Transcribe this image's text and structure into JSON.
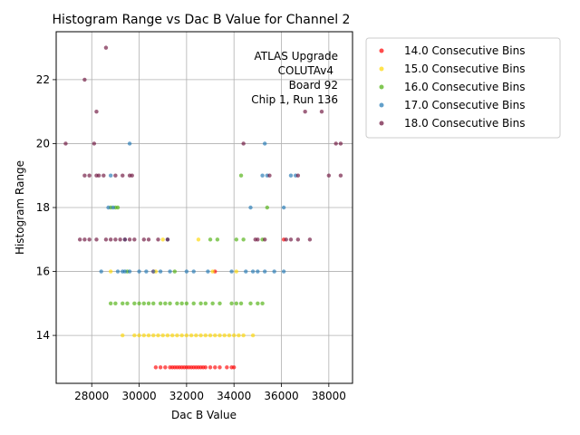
{
  "chart_data": {
    "type": "scatter",
    "title": "Histogram Range vs Dac B Value for Channel 2",
    "xlabel": "Dac B Value",
    "ylabel": "Histogram Range",
    "xlim": [
      26500,
      39000
    ],
    "ylim": [
      12.5,
      23.5
    ],
    "x_ticks": [
      28000,
      30000,
      32000,
      34000,
      36000,
      38000
    ],
    "y_ticks": [
      14,
      16,
      18,
      20,
      22
    ],
    "grid": true,
    "legend_position": "outside-right",
    "annotation": [
      "ATLAS Upgrade",
      "COLUTAv4",
      "Board 92",
      "Chip 1, Run 136"
    ],
    "series": [
      {
        "name": "14.0 Consecutive Bins",
        "color": "#ff0000",
        "points": [
          [
            30700,
            13
          ],
          [
            30900,
            13
          ],
          [
            31100,
            13
          ],
          [
            31300,
            13
          ],
          [
            31400,
            13
          ],
          [
            31500,
            13
          ],
          [
            31600,
            13
          ],
          [
            31700,
            13
          ],
          [
            31800,
            13
          ],
          [
            31900,
            13
          ],
          [
            32000,
            13
          ],
          [
            32100,
            13
          ],
          [
            32200,
            13
          ],
          [
            32300,
            13
          ],
          [
            32400,
            13
          ],
          [
            32500,
            13
          ],
          [
            32600,
            13
          ],
          [
            32700,
            13
          ],
          [
            32800,
            13
          ],
          [
            33000,
            13
          ],
          [
            33200,
            13
          ],
          [
            33400,
            13
          ],
          [
            33700,
            13
          ],
          [
            33900,
            13
          ],
          [
            34000,
            13
          ],
          [
            33200,
            16
          ],
          [
            36100,
            17
          ],
          [
            30600,
            16
          ]
        ]
      },
      {
        "name": "15.0 Consecutive Bins",
        "color": "#ffd700",
        "points": [
          [
            29300,
            14
          ],
          [
            29800,
            14
          ],
          [
            30000,
            14
          ],
          [
            30200,
            14
          ],
          [
            30400,
            14
          ],
          [
            30600,
            14
          ],
          [
            30800,
            14
          ],
          [
            31000,
            14
          ],
          [
            31200,
            14
          ],
          [
            31400,
            14
          ],
          [
            31600,
            14
          ],
          [
            31800,
            14
          ],
          [
            32000,
            14
          ],
          [
            32200,
            14
          ],
          [
            32400,
            14
          ],
          [
            32600,
            14
          ],
          [
            32800,
            14
          ],
          [
            33000,
            14
          ],
          [
            33200,
            14
          ],
          [
            33400,
            14
          ],
          [
            33600,
            14
          ],
          [
            33800,
            14
          ],
          [
            34000,
            14
          ],
          [
            34200,
            14
          ],
          [
            34400,
            14
          ],
          [
            34800,
            14
          ],
          [
            28800,
            16
          ],
          [
            30700,
            16
          ],
          [
            31000,
            17
          ],
          [
            32500,
            17
          ],
          [
            33100,
            16
          ],
          [
            34100,
            16
          ]
        ]
      },
      {
        "name": "16.0 Consecutive Bins",
        "color": "#4caf0a",
        "points": [
          [
            28800,
            15
          ],
          [
            29000,
            15
          ],
          [
            29300,
            15
          ],
          [
            29500,
            15
          ],
          [
            29800,
            15
          ],
          [
            30000,
            15
          ],
          [
            30200,
            15
          ],
          [
            30400,
            15
          ],
          [
            30600,
            15
          ],
          [
            30900,
            15
          ],
          [
            31100,
            15
          ],
          [
            31300,
            15
          ],
          [
            31600,
            15
          ],
          [
            31800,
            15
          ],
          [
            32000,
            15
          ],
          [
            32300,
            15
          ],
          [
            32600,
            15
          ],
          [
            32800,
            15
          ],
          [
            33100,
            15
          ],
          [
            33400,
            15
          ],
          [
            33900,
            15
          ],
          [
            34100,
            15
          ],
          [
            34300,
            15
          ],
          [
            34700,
            15
          ],
          [
            35000,
            15
          ],
          [
            35200,
            15
          ],
          [
            28800,
            18
          ],
          [
            29000,
            18
          ],
          [
            29100,
            18
          ],
          [
            33000,
            17
          ],
          [
            33300,
            17
          ],
          [
            34100,
            17
          ],
          [
            34400,
            17
          ],
          [
            35200,
            17
          ],
          [
            35400,
            18
          ],
          [
            34300,
            19
          ],
          [
            31500,
            16
          ],
          [
            29500,
            16
          ]
        ]
      },
      {
        "name": "17.0 Consecutive Bins",
        "color": "#1f77b4",
        "points": [
          [
            28400,
            16
          ],
          [
            29100,
            16
          ],
          [
            29300,
            16
          ],
          [
            29400,
            16
          ],
          [
            29600,
            16
          ],
          [
            30000,
            16
          ],
          [
            30300,
            16
          ],
          [
            30600,
            16
          ],
          [
            30900,
            16
          ],
          [
            31300,
            16
          ],
          [
            32000,
            16
          ],
          [
            32300,
            16
          ],
          [
            32900,
            16
          ],
          [
            33900,
            16
          ],
          [
            34500,
            16
          ],
          [
            34800,
            16
          ],
          [
            35000,
            16
          ],
          [
            35300,
            16
          ],
          [
            35700,
            16
          ],
          [
            36100,
            16
          ],
          [
            28700,
            18
          ],
          [
            28900,
            18
          ],
          [
            34700,
            18
          ],
          [
            36100,
            18
          ],
          [
            29600,
            20
          ],
          [
            35300,
            20
          ],
          [
            35200,
            19
          ],
          [
            35400,
            19
          ],
          [
            36400,
            19
          ],
          [
            36600,
            19
          ],
          [
            28800,
            19
          ],
          [
            31200,
            17
          ],
          [
            29400,
            17
          ]
        ]
      },
      {
        "name": "18.0 Consecutive Bins",
        "color": "#6b0f3a",
        "points": [
          [
            26900,
            20
          ],
          [
            27700,
            22
          ],
          [
            28200,
            21
          ],
          [
            28600,
            23
          ],
          [
            28100,
            20
          ],
          [
            27700,
            19
          ],
          [
            27900,
            19
          ],
          [
            28200,
            19
          ],
          [
            28300,
            19
          ],
          [
            28500,
            19
          ],
          [
            29000,
            19
          ],
          [
            29300,
            19
          ],
          [
            29600,
            19
          ],
          [
            29700,
            19
          ],
          [
            27500,
            17
          ],
          [
            27700,
            17
          ],
          [
            27900,
            17
          ],
          [
            28200,
            17
          ],
          [
            28600,
            17
          ],
          [
            28800,
            17
          ],
          [
            29000,
            17
          ],
          [
            29200,
            17
          ],
          [
            29400,
            17
          ],
          [
            29600,
            17
          ],
          [
            29800,
            17
          ],
          [
            30200,
            17
          ],
          [
            30400,
            17
          ],
          [
            30800,
            17
          ],
          [
            31200,
            17
          ],
          [
            35000,
            17
          ],
          [
            35300,
            17
          ],
          [
            36200,
            17
          ],
          [
            36400,
            17
          ],
          [
            36700,
            17
          ],
          [
            37200,
            17
          ],
          [
            34400,
            20
          ],
          [
            36700,
            19
          ],
          [
            37000,
            21
          ],
          [
            37700,
            21
          ],
          [
            38300,
            20
          ],
          [
            38500,
            20
          ],
          [
            38500,
            19
          ],
          [
            38000,
            19
          ],
          [
            35500,
            19
          ],
          [
            34900,
            17
          ]
        ]
      }
    ]
  }
}
